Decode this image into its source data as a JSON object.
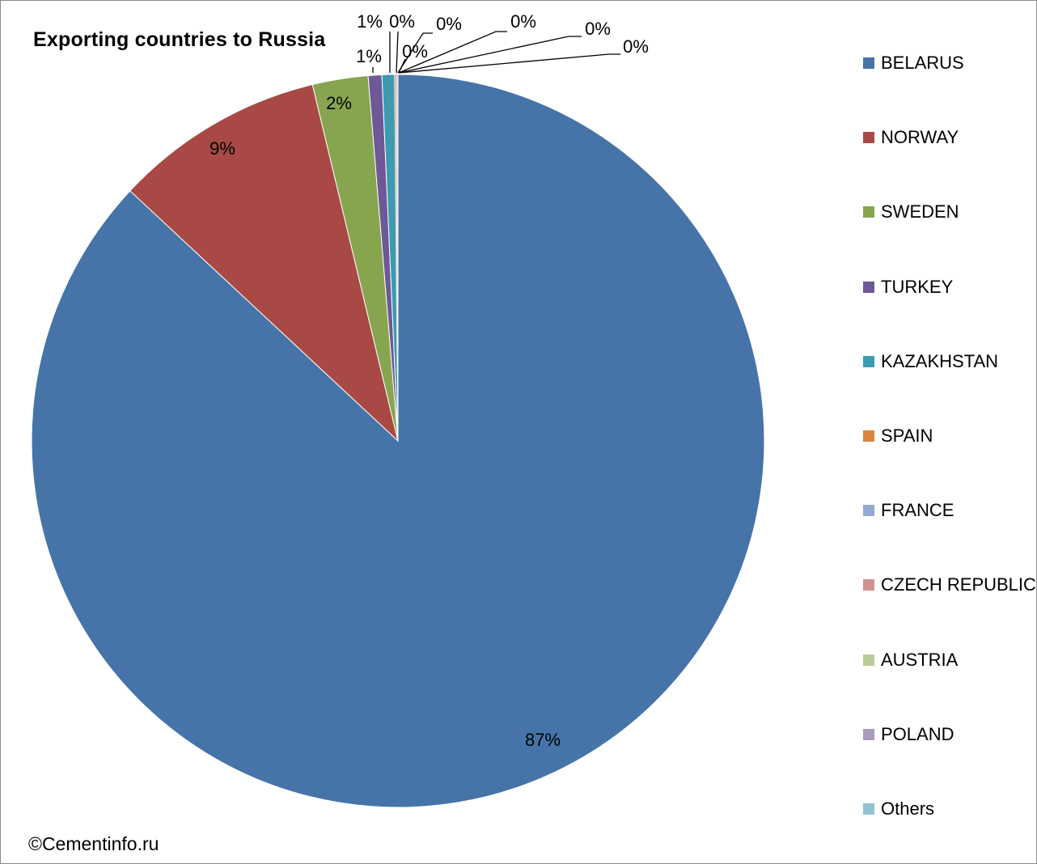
{
  "chart_data": {
    "type": "pie",
    "title": "Exporting countries to Russia",
    "slices": [
      {
        "name": "BELARUS",
        "value": 86.95,
        "label": "87%",
        "color": "#4674A8"
      },
      {
        "name": "NORWAY",
        "value": 9.3,
        "label": "9%",
        "color": "#A84946"
      },
      {
        "name": "SWEDEN",
        "value": 2.45,
        "label": "2%",
        "color": "#87A54F"
      },
      {
        "name": "TURKEY",
        "value": 0.6,
        "label": "1%",
        "color": "#6E5896"
      },
      {
        "name": "KAZAKHSTAN",
        "value": 0.55,
        "label": "1%",
        "color": "#3D9AB0"
      },
      {
        "name": "SPAIN",
        "value": 0.04,
        "label": "0%",
        "color": "#DB843D"
      },
      {
        "name": "FRANCE",
        "value": 0.03,
        "label": "0%",
        "color": "#93A9CF"
      },
      {
        "name": "CZECH REPUBLIC",
        "value": 0.03,
        "label": "0%",
        "color": "#D19392"
      },
      {
        "name": "AUSTRIA",
        "value": 0.02,
        "label": "0%",
        "color": "#B9CD96"
      },
      {
        "name": "POLAND",
        "value": 0.02,
        "label": "0%",
        "color": "#A99BBD"
      },
      {
        "name": "Others",
        "value": 0.01,
        "label": "0%",
        "color": "#92C3D4"
      }
    ],
    "legend_position": "right"
  },
  "footer": {
    "copyright": "©Cementinfo.ru"
  }
}
